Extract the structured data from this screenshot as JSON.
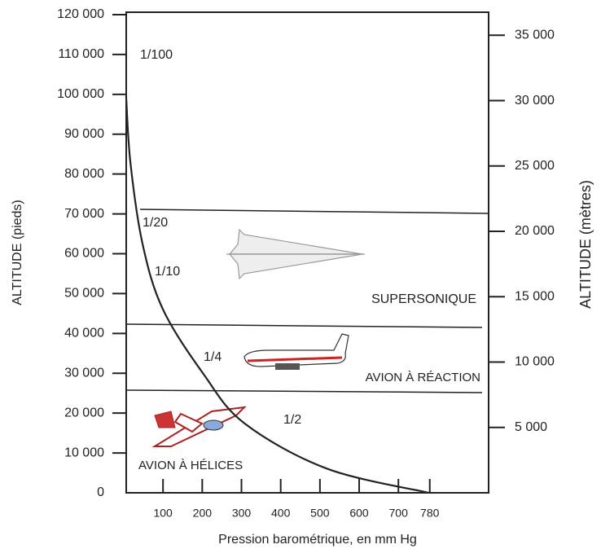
{
  "chart_data": {
    "type": "line",
    "x_label": "Pression barométrique, en mm Hg",
    "y_label": "ALTITUDE (pieds)",
    "y2_label": "ALTITUDE (mètres)",
    "x": [
      6,
      17,
      48,
      100,
      204,
      308,
      517,
      777
    ],
    "values": [
      99500,
      82800,
      62400,
      46000,
      29700,
      17400,
      6100,
      0
    ],
    "color": "#222222",
    "xlim": [
      0,
      930
    ],
    "xticks": [
      100,
      200,
      300,
      400,
      500,
      600,
      700,
      780
    ],
    "ylim": [
      0,
      120000
    ],
    "yticks": [
      0,
      {
        "value": 10000,
        "label": "10 000"
      },
      {
        "value": 20000,
        "label": "20 000"
      },
      {
        "value": 30000,
        "label": "30 000"
      },
      {
        "value": 40000,
        "label": "40 000"
      },
      {
        "value": 50000,
        "label": "50 000"
      },
      {
        "value": 60000,
        "label": "60 000"
      },
      {
        "value": 70000,
        "label": "70 000"
      },
      {
        "value": 80000,
        "label": "80 000"
      },
      {
        "value": 90000,
        "label": "90 000"
      },
      {
        "value": 100000,
        "label": "100 000"
      },
      {
        "value": 110000,
        "label": "110 000"
      },
      {
        "value": 120000,
        "label": "120 000"
      }
    ],
    "y2lim": [
      0,
      36576
    ],
    "y2ticks": [
      {
        "value": 5000,
        "label": "5 000"
      },
      {
        "value": 10000,
        "label": "10 000"
      },
      {
        "value": 15000,
        "label": "15 000"
      },
      {
        "value": 20000,
        "label": "20 000"
      },
      {
        "value": 25000,
        "label": "25 000"
      },
      {
        "value": 30000,
        "label": "30 000"
      },
      {
        "value": 35000,
        "label": "35 000"
      }
    ],
    "fractions": [
      "1/100",
      "1/20",
      "1/10",
      "1/4",
      "1/2"
    ],
    "zones": [
      "SUPERSONIQUE",
      "AVION À RÉACTION",
      "AVION À HÉLICES"
    ]
  }
}
